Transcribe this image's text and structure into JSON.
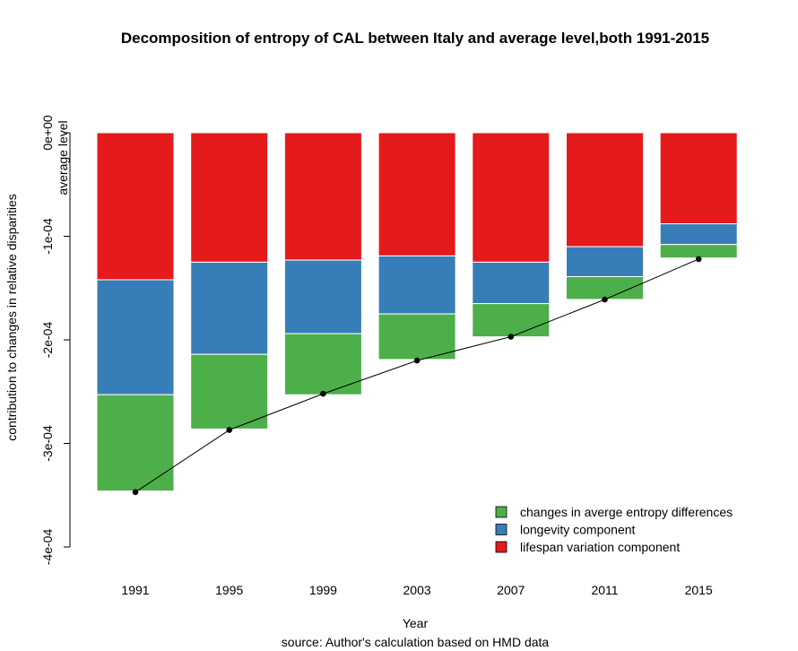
{
  "chart_data": {
    "type": "bar",
    "stacked": true,
    "title": "Decomposition of entropy of CAL between Italy and average level,both 1991-2015",
    "xlabel": "Year",
    "caption": "source: Author's calculation based on HMD data",
    "ylabel": "contribution to changes in relative disparities",
    "ylabel2": "average level",
    "ylim": [
      -0.0004,
      0
    ],
    "yticks": [
      0,
      -0.0001,
      -0.0002,
      -0.0003,
      -0.0004
    ],
    "ytick_labels": [
      "0e+00",
      "-1e-04",
      "-2e-04",
      "-3e-04",
      "-4e-04"
    ],
    "categories": [
      "1991",
      "1995",
      "1999",
      "2003",
      "2007",
      "2011",
      "2015"
    ],
    "series": [
      {
        "name": "lifespan variation component",
        "color": "#e41a1c",
        "values": [
          -0.000142,
          -0.000125,
          -0.000123,
          -0.000119,
          -0.000125,
          -0.00011,
          -8.8e-05
        ]
      },
      {
        "name": "longevity component",
        "color": "#377eb8",
        "values": [
          -0.000111,
          -8.9e-05,
          -7.1e-05,
          -5.6e-05,
          -4e-05,
          -2.9e-05,
          -2e-05
        ]
      },
      {
        "name": "changes in averge entropy differences",
        "color": "#4daf4a",
        "values": [
          -9.3e-05,
          -7.2e-05,
          -5.9e-05,
          -4.4e-05,
          -3.2e-05,
          -2.2e-05,
          -1.3e-05
        ]
      }
    ],
    "line": {
      "values": [
        -0.000347,
        -0.000287,
        -0.000252,
        -0.00022,
        -0.000197,
        -0.000161,
        -0.000122
      ]
    },
    "legend": {
      "position": "bottom-right",
      "entries": [
        {
          "label": "changes in averge entropy differences",
          "color": "#4daf4a"
        },
        {
          "label": "longevity component",
          "color": "#377eb8"
        },
        {
          "label": "lifespan variation component",
          "color": "#e41a1c"
        }
      ]
    },
    "grid": false
  }
}
